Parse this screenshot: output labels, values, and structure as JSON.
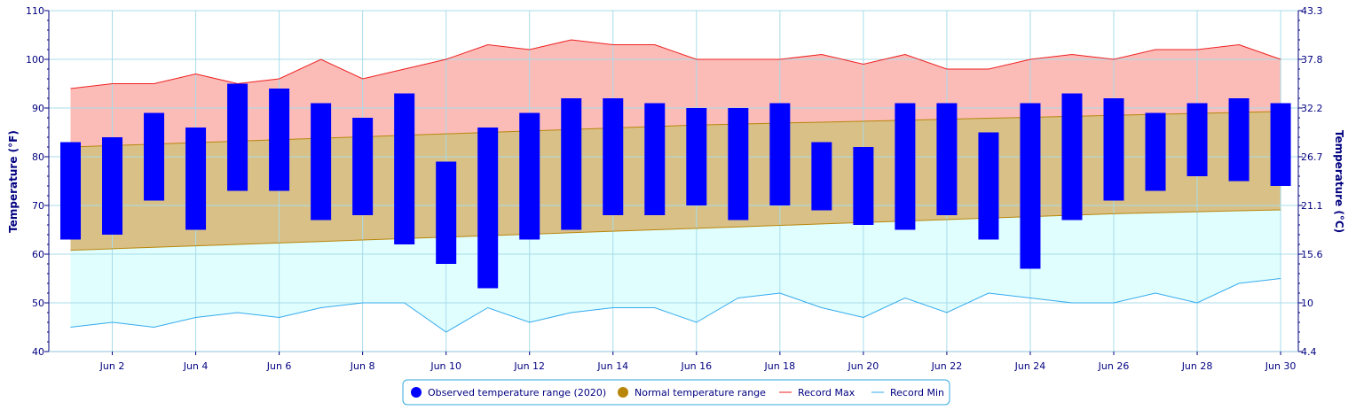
{
  "chart_data": {
    "type": "bar",
    "ylabel": "Temperature (°F)",
    "y2label": "Temperature (°C)",
    "ylim": [
      40,
      110
    ],
    "yticks": [
      40,
      50,
      60,
      70,
      80,
      90,
      100,
      110
    ],
    "y2ticks": [
      "4.4",
      "10",
      "15.6",
      "21.1",
      "26.7",
      "32.2",
      "37.8",
      "43.3"
    ],
    "xticks": [
      "Jun 2",
      "Jun 4",
      "Jun 6",
      "Jun 8",
      "Jun 10",
      "Jun 12",
      "Jun 14",
      "Jun 16",
      "Jun 18",
      "Jun 20",
      "Jun 22",
      "Jun 24",
      "Jun 26",
      "Jun 28",
      "Jun 30"
    ],
    "days": [
      1,
      2,
      3,
      4,
      5,
      6,
      7,
      8,
      9,
      10,
      11,
      12,
      13,
      14,
      15,
      16,
      17,
      18,
      19,
      20,
      21,
      22,
      23,
      24,
      25,
      26,
      27,
      28,
      29,
      30
    ],
    "grid": true,
    "legend_position": "bottom-center",
    "colors": {
      "observed": "#0000ff",
      "normal_fill": "#d9c086",
      "normal_line": "#b8860b",
      "normal_legend": "#b8860b",
      "record_max_fill": "#fbbcb8",
      "record_max_line": "#ee2222",
      "record_min_fill": "#e0fefe",
      "record_min_line": "#33aaee",
      "grid": "#a8dcea",
      "axis": "#000080"
    },
    "series": [
      {
        "name": "Observed temperature range (2020)",
        "low": [
          63,
          64,
          71,
          65,
          73,
          73,
          67,
          68,
          62,
          58,
          53,
          63,
          65,
          68,
          68,
          70,
          67,
          70,
          69,
          66,
          65,
          68,
          63,
          57,
          67,
          71,
          73,
          76,
          75,
          74
        ],
        "high": [
          83,
          84,
          89,
          86,
          95,
          94,
          91,
          88,
          93,
          79,
          86,
          89,
          92,
          92,
          91,
          90,
          90,
          91,
          83,
          82,
          91,
          91,
          85,
          91,
          93,
          92,
          89,
          91,
          92,
          91
        ]
      },
      {
        "name": "Normal temperature range",
        "low": [
          60.8,
          61.1,
          61.4,
          61.7,
          62.0,
          62.3,
          62.6,
          62.9,
          63.2,
          63.5,
          63.8,
          64.1,
          64.4,
          64.7,
          65.0,
          65.3,
          65.6,
          65.9,
          66.2,
          66.5,
          66.8,
          67.1,
          67.4,
          67.7,
          68.0,
          68.3,
          68.5,
          68.7,
          68.9,
          69.1
        ],
        "high": [
          82.0,
          82.3,
          82.6,
          82.9,
          83.2,
          83.5,
          83.8,
          84.1,
          84.4,
          84.7,
          85.0,
          85.3,
          85.6,
          85.9,
          86.2,
          86.5,
          86.7,
          86.9,
          87.1,
          87.3,
          87.5,
          87.7,
          87.9,
          88.1,
          88.3,
          88.5,
          88.7,
          88.9,
          89.1,
          89.3
        ]
      },
      {
        "name": "Record Max",
        "values": [
          94,
          95,
          95,
          97,
          95,
          96,
          100,
          96,
          98,
          100,
          103,
          102,
          104,
          103,
          103,
          100,
          100,
          100,
          101,
          99,
          101,
          98,
          98,
          100,
          101,
          100,
          102,
          102,
          103,
          100
        ]
      },
      {
        "name": "Record Min",
        "values": [
          45,
          46,
          45,
          47,
          48,
          47,
          49,
          50,
          50,
          44,
          49,
          46,
          48,
          49,
          49,
          46,
          51,
          52,
          49,
          47,
          51,
          48,
          52,
          51,
          50,
          50,
          52,
          50,
          54,
          55
        ]
      }
    ]
  }
}
